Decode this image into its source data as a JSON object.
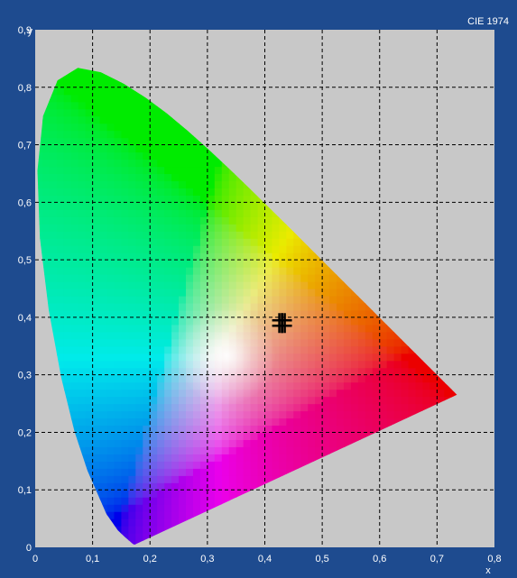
{
  "chart_data": {
    "type": "scatter",
    "title": "CIE 1974",
    "xlabel": "x",
    "ylabel": "y",
    "xlim": [
      0,
      0.8
    ],
    "ylim": [
      0,
      0.9
    ],
    "x_ticks": [
      "0",
      "0,1",
      "0,2",
      "0,3",
      "0,4",
      "0,5",
      "0,6",
      "0,7",
      "0,8"
    ],
    "y_ticks": [
      "0",
      "0,1",
      "0,2",
      "0,3",
      "0,4",
      "0,5",
      "0,6",
      "0,7",
      "0,8",
      "0,9"
    ],
    "grid": true,
    "marker": {
      "x": 0.43,
      "y": 0.39
    },
    "colors": {
      "frame": "#1e4b8f",
      "plot_background": "#c8c8c8",
      "grid": "#000000",
      "marker": "#000000"
    }
  }
}
